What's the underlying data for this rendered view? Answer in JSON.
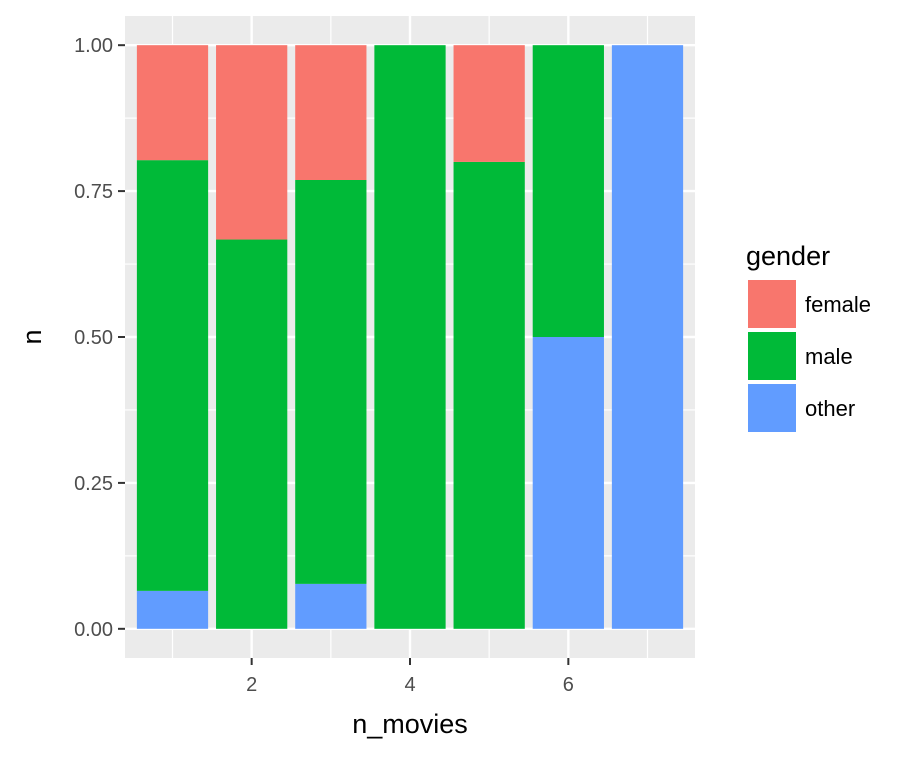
{
  "chart_data": {
    "type": "bar",
    "stacked": true,
    "x": [
      1,
      2,
      3,
      4,
      5,
      6,
      7
    ],
    "series": [
      {
        "name": "other",
        "values": [
          0.065,
          0.0,
          0.077,
          0.0,
          0.0,
          0.5,
          1.0
        ]
      },
      {
        "name": "male",
        "values": [
          0.738,
          0.667,
          0.692,
          1.0,
          0.8,
          0.5,
          0.0
        ]
      },
      {
        "name": "female",
        "values": [
          0.197,
          0.333,
          0.231,
          0.0,
          0.2,
          0.0,
          0.0
        ]
      }
    ],
    "colors": {
      "female": "#F8766D",
      "male": "#00BA38",
      "other": "#619CFF"
    },
    "xlabel": "n_movies",
    "ylabel": "n",
    "xlim": [
      0.4,
      7.6
    ],
    "ylim": [
      -0.05,
      1.05
    ],
    "x_ticks": [
      2,
      4,
      6
    ],
    "x_tick_labels": [
      "2",
      "4",
      "6"
    ],
    "y_ticks": [
      0,
      0.25,
      0.5,
      0.75,
      1.0
    ],
    "y_tick_labels": [
      "0.00",
      "0.25",
      "0.50",
      "0.75",
      "1.00"
    ],
    "grid": true,
    "legend": {
      "title": "gender",
      "position": "right",
      "entries": [
        "female",
        "male",
        "other"
      ]
    },
    "panel_background": "#EBEBEB"
  }
}
